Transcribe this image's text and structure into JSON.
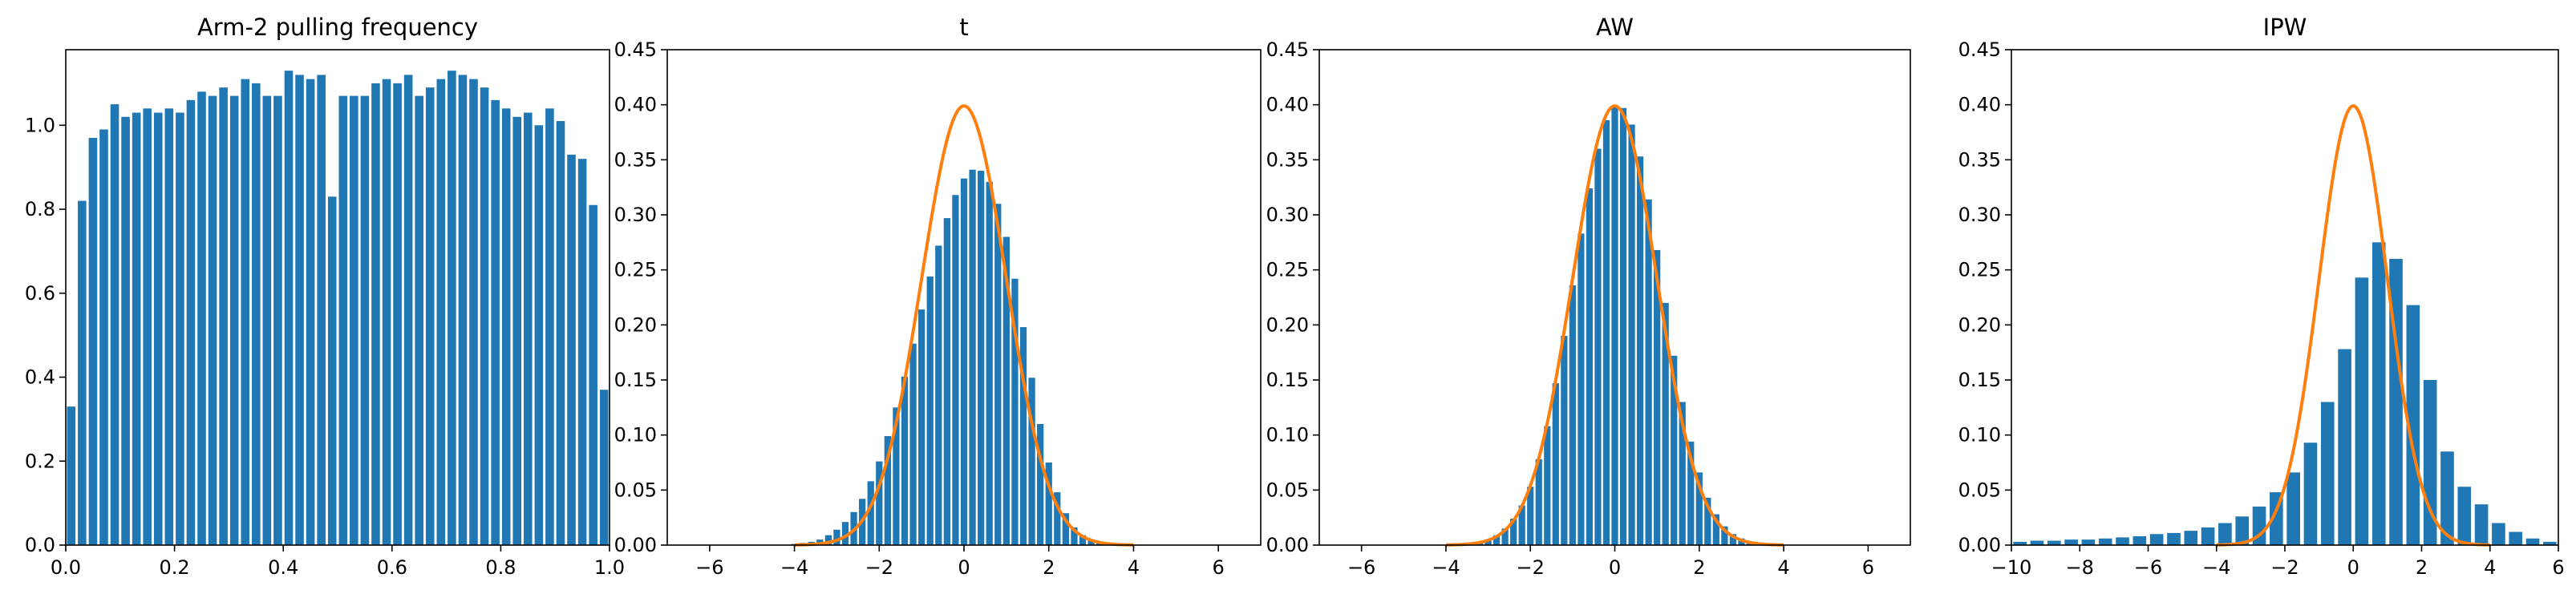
{
  "chart_data": [
    {
      "type": "bar",
      "title": "Arm-2 pulling frequency",
      "xlabel": "",
      "ylabel": "",
      "xlim": [
        0.0,
        1.0
      ],
      "ylim": [
        0.0,
        1.18
      ],
      "xticks": [
        "0.0",
        "0.2",
        "0.4",
        "0.6",
        "0.8",
        "1.0"
      ],
      "yticks": [
        "0.0",
        "0.2",
        "0.4",
        "0.6",
        "0.8",
        "1.0"
      ],
      "bar_color": "#1f77b4",
      "bin_width": 0.02,
      "x": [
        0.01,
        0.03,
        0.05,
        0.07,
        0.09,
        0.11,
        0.13,
        0.15,
        0.17,
        0.19,
        0.21,
        0.23,
        0.25,
        0.27,
        0.29,
        0.31,
        0.33,
        0.35,
        0.37,
        0.39,
        0.41,
        0.43,
        0.45,
        0.47,
        0.49,
        0.51,
        0.53,
        0.55,
        0.57,
        0.59,
        0.61,
        0.63,
        0.65,
        0.67,
        0.69,
        0.71,
        0.73,
        0.75,
        0.77,
        0.79,
        0.81,
        0.83,
        0.85,
        0.87,
        0.89,
        0.91,
        0.93,
        0.95,
        0.97,
        0.99
      ],
      "values": [
        0.33,
        0.82,
        0.97,
        0.99,
        1.05,
        1.02,
        1.03,
        1.04,
        1.03,
        1.04,
        1.03,
        1.06,
        1.08,
        1.07,
        1.09,
        1.07,
        1.11,
        1.1,
        1.07,
        1.07,
        1.13,
        1.12,
        1.11,
        1.12,
        0.83,
        1.07,
        1.07,
        1.07,
        1.1,
        1.11,
        1.1,
        1.12,
        1.07,
        1.09,
        1.11,
        1.13,
        1.12,
        1.11,
        1.09,
        1.06,
        1.04,
        1.02,
        1.03,
        1.0,
        1.04,
        1.01,
        0.93,
        0.92,
        0.81,
        0.37
      ]
    },
    {
      "type": "bar",
      "title": "t",
      "xlabel": "",
      "ylabel": "",
      "xlim": [
        -7,
        7
      ],
      "ylim": [
        0.0,
        0.45
      ],
      "xticks": [
        "−6",
        "−4",
        "−2",
        "0",
        "2",
        "4",
        "6"
      ],
      "yticks": [
        "0.00",
        "0.05",
        "0.10",
        "0.15",
        "0.20",
        "0.25",
        "0.30",
        "0.35",
        "0.40",
        "0.45"
      ],
      "bar_color": "#1f77b4",
      "curve_color": "#ff7f0e",
      "bin_width": 0.2,
      "x": [
        -4.0,
        -3.8,
        -3.6,
        -3.4,
        -3.2,
        -3.0,
        -2.8,
        -2.6,
        -2.4,
        -2.2,
        -2.0,
        -1.8,
        -1.6,
        -1.4,
        -1.2,
        -1.0,
        -0.8,
        -0.6,
        -0.4,
        -0.2,
        0.0,
        0.2,
        0.4,
        0.6,
        0.8,
        1.0,
        1.2,
        1.4,
        1.6,
        1.8,
        2.0,
        2.2,
        2.4,
        2.6,
        2.8,
        3.0,
        3.2,
        3.4,
        3.6,
        3.8
      ],
      "values": [
        0.001,
        0.002,
        0.003,
        0.005,
        0.009,
        0.014,
        0.021,
        0.03,
        0.042,
        0.058,
        0.076,
        0.099,
        0.125,
        0.153,
        0.183,
        0.214,
        0.244,
        0.272,
        0.297,
        0.318,
        0.333,
        0.341,
        0.34,
        0.33,
        0.31,
        0.28,
        0.242,
        0.198,
        0.152,
        0.11,
        0.075,
        0.048,
        0.029,
        0.016,
        0.009,
        0.005,
        0.003,
        0.001,
        0.001,
        0.0005
      ],
      "series": [
        {
          "name": "",
          "kind": "normal-pdf",
          "mean": 0,
          "sd": 1,
          "range": [
            -4,
            4
          ]
        }
      ]
    },
    {
      "type": "bar",
      "title": "AW",
      "xlabel": "",
      "ylabel": "",
      "xlim": [
        -7,
        7
      ],
      "ylim": [
        0.0,
        0.45
      ],
      "xticks": [
        "−6",
        "−4",
        "−2",
        "0",
        "2",
        "4",
        "6"
      ],
      "yticks": [
        "0.00",
        "0.05",
        "0.10",
        "0.15",
        "0.20",
        "0.25",
        "0.30",
        "0.35",
        "0.40",
        "0.45"
      ],
      "bar_color": "#1f77b4",
      "curve_color": "#ff7f0e",
      "bin_width": 0.2,
      "x": [
        -4.0,
        -3.8,
        -3.6,
        -3.4,
        -3.2,
        -3.0,
        -2.8,
        -2.6,
        -2.4,
        -2.2,
        -2.0,
        -1.8,
        -1.6,
        -1.4,
        -1.2,
        -1.0,
        -0.8,
        -0.6,
        -0.4,
        -0.2,
        0.0,
        0.2,
        0.4,
        0.6,
        0.8,
        1.0,
        1.2,
        1.4,
        1.6,
        1.8,
        2.0,
        2.2,
        2.4,
        2.6,
        2.8,
        3.0,
        3.2,
        3.4,
        3.6,
        3.8
      ],
      "values": [
        0.0002,
        0.0005,
        0.001,
        0.002,
        0.003,
        0.005,
        0.009,
        0.015,
        0.024,
        0.036,
        0.053,
        0.078,
        0.108,
        0.147,
        0.19,
        0.236,
        0.283,
        0.324,
        0.36,
        0.386,
        0.398,
        0.397,
        0.382,
        0.353,
        0.314,
        0.268,
        0.22,
        0.172,
        0.13,
        0.094,
        0.066,
        0.043,
        0.028,
        0.017,
        0.01,
        0.006,
        0.003,
        0.002,
        0.001,
        0.0004
      ],
      "series": [
        {
          "name": "",
          "kind": "normal-pdf",
          "mean": 0,
          "sd": 1,
          "range": [
            -4,
            4
          ]
        }
      ]
    },
    {
      "type": "bar",
      "title": "IPW",
      "xlabel": "",
      "ylabel": "",
      "xlim": [
        -10,
        6
      ],
      "ylim": [
        0.0,
        0.45
      ],
      "xticks": [
        "−10",
        "−8",
        "−6",
        "−4",
        "−2",
        "0",
        "2",
        "4",
        "6"
      ],
      "yticks": [
        "0.00",
        "0.05",
        "0.10",
        "0.15",
        "0.20",
        "0.25",
        "0.30",
        "0.35",
        "0.40",
        "0.45"
      ],
      "bar_color": "#1f77b4",
      "curve_color": "#ff7f0e",
      "bin_width": 0.5,
      "x": [
        -9.75,
        -9.25,
        -8.75,
        -8.25,
        -7.75,
        -7.25,
        -6.75,
        -6.25,
        -5.75,
        -5.25,
        -4.75,
        -4.25,
        -3.75,
        -3.25,
        -2.75,
        -2.25,
        -1.75,
        -1.25,
        -0.75,
        -0.25,
        0.25,
        0.75,
        1.25,
        1.75,
        2.25,
        2.75,
        3.25,
        3.75,
        4.25,
        4.75,
        5.25,
        5.75
      ],
      "values": [
        0.003,
        0.004,
        0.004,
        0.005,
        0.005,
        0.006,
        0.007,
        0.008,
        0.01,
        0.011,
        0.013,
        0.016,
        0.02,
        0.026,
        0.035,
        0.048,
        0.066,
        0.093,
        0.13,
        0.178,
        0.243,
        0.275,
        0.26,
        0.218,
        0.15,
        0.085,
        0.053,
        0.037,
        0.02,
        0.012,
        0.006,
        0.003
      ],
      "series": [
        {
          "name": "",
          "kind": "normal-pdf",
          "mean": 0,
          "sd": 1,
          "range": [
            -4,
            4
          ]
        }
      ]
    }
  ]
}
